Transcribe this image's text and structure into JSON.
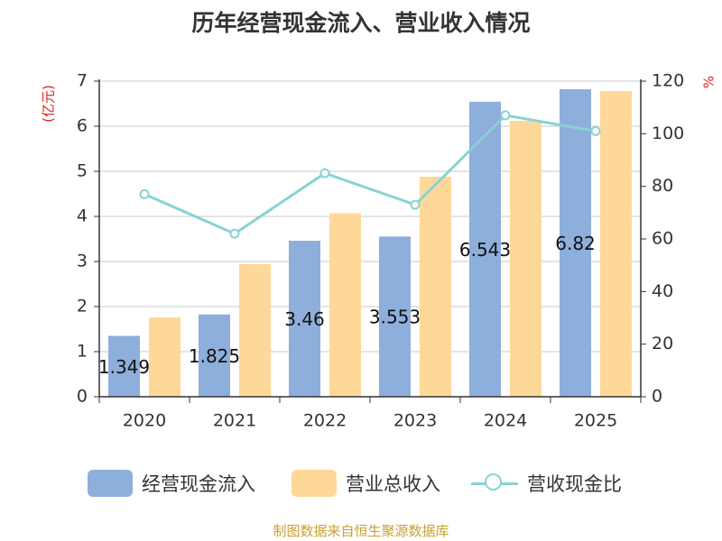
{
  "chart_data": {
    "type": "bar",
    "title": "历年经营现金流入、营业收入情况",
    "categories": [
      "2020",
      "2021",
      "2022",
      "2023",
      "2024",
      "2025"
    ],
    "left_axis": {
      "unit_label": "(亿元)",
      "range": [
        0,
        7
      ],
      "ticks": [
        "0",
        "1",
        "2",
        "3",
        "4",
        "5",
        "6",
        "7"
      ]
    },
    "right_axis": {
      "unit_label": "%",
      "range": [
        0,
        120
      ],
      "ticks": [
        "0",
        "20",
        "40",
        "60",
        "80",
        "100",
        "120"
      ]
    },
    "series": [
      {
        "name": "经营现金流入",
        "type": "bar",
        "axis": "left",
        "color": "#8eaedb",
        "values": [
          1.349,
          1.825,
          3.46,
          3.553,
          6.543,
          6.82
        ],
        "labels": [
          "1.349",
          "1.825",
          "3.46",
          "3.553",
          "6.543",
          "6.82"
        ]
      },
      {
        "name": "营业总收入",
        "type": "bar",
        "axis": "left",
        "color": "#fed898",
        "values": [
          1.76,
          2.94,
          4.07,
          4.88,
          6.12,
          6.78
        ]
      },
      {
        "name": "营收现金比",
        "type": "line",
        "axis": "right",
        "color": "#88d3d3",
        "values": [
          77,
          62,
          85,
          73,
          107,
          101
        ]
      }
    ],
    "grid": true
  },
  "source": "制图数据来自恒生聚源数据库"
}
